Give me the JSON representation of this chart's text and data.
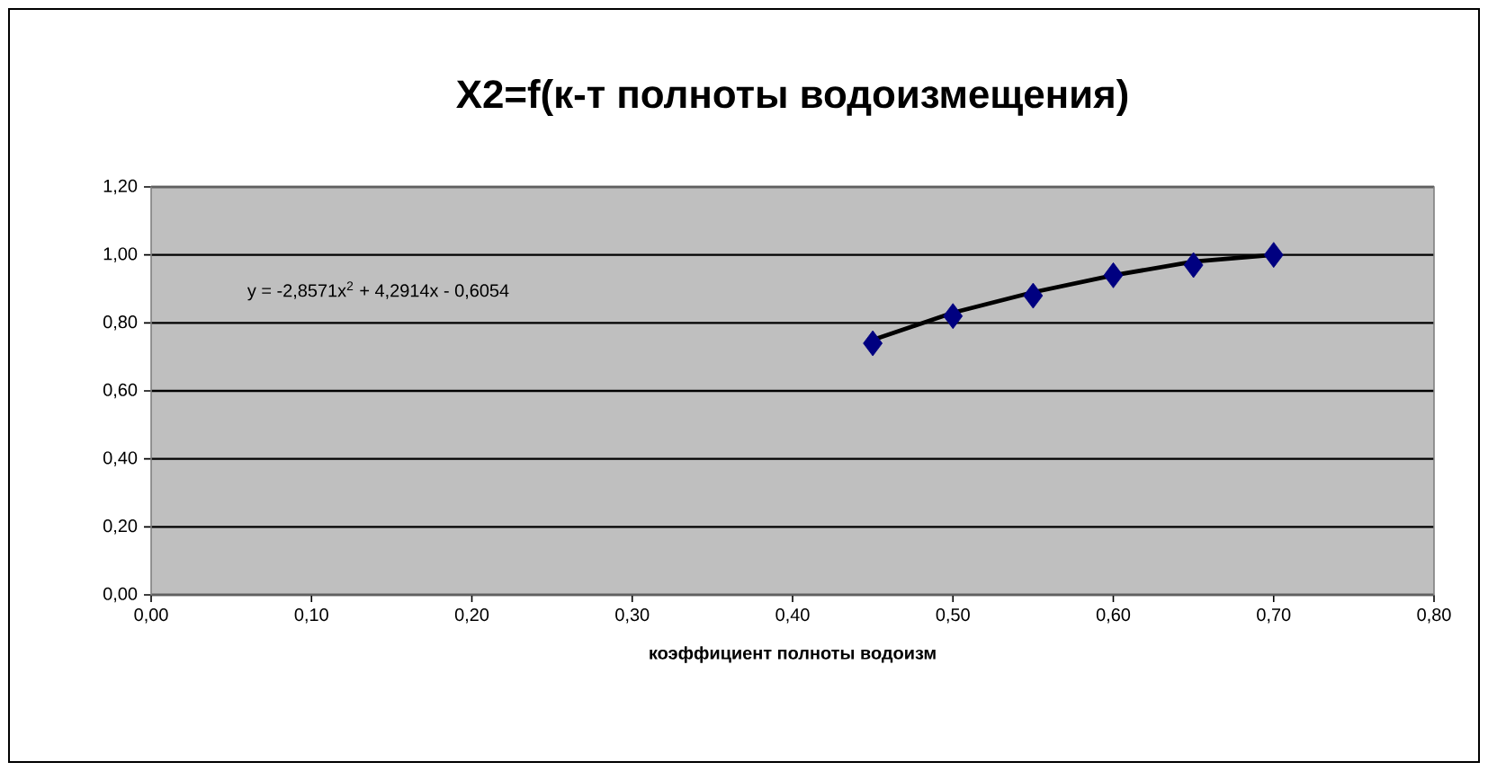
{
  "chart_data": {
    "type": "scatter",
    "title": "X2=f(к-т полноты водоизмещения)",
    "xlabel": "коэффициент полноты водоизм",
    "annotations": [
      "y = -2,8571x$^{2}$ + 4,2914x - 0,6054"
    ],
    "series": [
      {
        "marker": "diamond",
        "color": "#000080",
        "x": [
          0.45,
          0.5,
          0.55,
          0.6,
          0.65,
          0.7
        ],
        "values": [
          0.74,
          0.82,
          0.88,
          0.94,
          0.97,
          1.0
        ]
      },
      {
        "type": "line",
        "marker": "none",
        "color": "#000000",
        "x": [
          0.45,
          0.5,
          0.55,
          0.6,
          0.65,
          0.7
        ],
        "values": [
          0.75,
          0.83,
          0.89,
          0.94,
          0.98,
          1.0
        ]
      }
    ],
    "xlim": [
      0,
      0.8
    ],
    "ylim": [
      0,
      1.2
    ],
    "xticks": [
      {
        "value": 0,
        "label": "0,00"
      },
      {
        "value": 0.1,
        "label": "0,10"
      },
      {
        "value": 0.2,
        "label": "0,20"
      },
      {
        "value": 0.3,
        "label": "0,30"
      },
      {
        "value": 0.4,
        "label": "0,40"
      },
      {
        "value": 0.5,
        "label": "0,50"
      },
      {
        "value": 0.6,
        "label": "0,60"
      },
      {
        "value": 0.7,
        "label": "0,70"
      },
      {
        "value": 0.8,
        "label": "0,80"
      }
    ],
    "yticks": [
      {
        "value": 0,
        "label": "0,00"
      },
      {
        "value": 0.2,
        "label": "0,20"
      },
      {
        "value": 0.4,
        "label": "0,40"
      },
      {
        "value": 0.6,
        "label": "0,60"
      },
      {
        "value": 0.8,
        "label": "0,80"
      },
      {
        "value": 1.0,
        "label": "1,00"
      },
      {
        "value": 1.2,
        "label": "1,20"
      }
    ],
    "grid": "y",
    "legend": false
  }
}
